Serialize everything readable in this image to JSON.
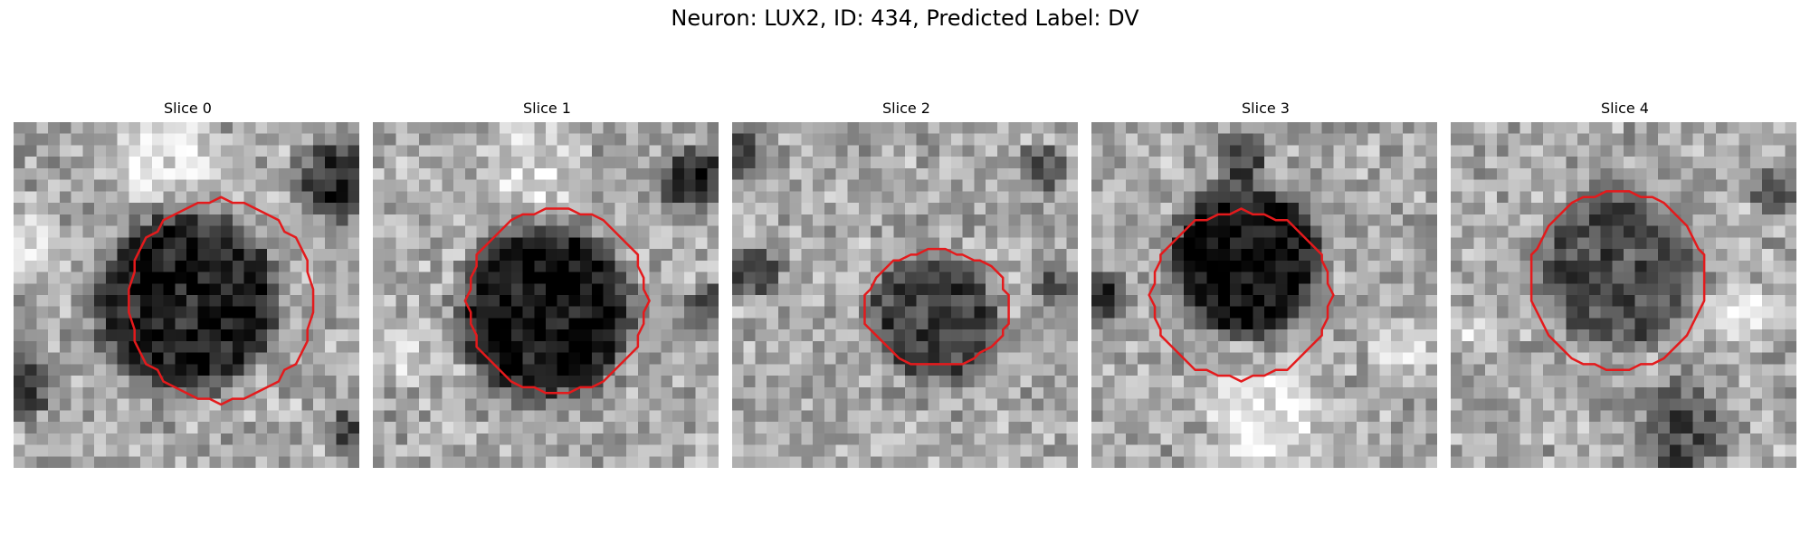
{
  "figure": {
    "title": "Neuron: LUX2, ID: 434, Predicted Label: DV"
  },
  "contour_color": "#e41a1c",
  "grid_size": 30,
  "panels": [
    {
      "title": "Slice 0",
      "blob": {
        "cx": 15.0,
        "cy": 15.5,
        "r": 8.5,
        "darkness": 0.55
      },
      "contour": {
        "cx": 18.0,
        "cy": 15.5,
        "rx": 8.0,
        "ry": 8.8
      },
      "dark_regions": [
        {
          "cx": 28,
          "cy": 5,
          "r": 5,
          "darkness": 0.5
        },
        {
          "cx": 0.5,
          "cy": 23,
          "r": 4,
          "darkness": 0.45
        },
        {
          "cx": 29,
          "cy": 27,
          "r": 3,
          "darkness": 0.35
        }
      ],
      "bright_regions": [
        {
          "cx": 13,
          "cy": 3,
          "r": 6,
          "brightness": 0.25
        },
        {
          "cx": 2,
          "cy": 11,
          "r": 4,
          "brightness": 0.2
        }
      ],
      "seed": 11
    },
    {
      "title": "Slice 1",
      "blob": {
        "cx": 15.0,
        "cy": 16.5,
        "r": 8.0,
        "darkness": 0.6
      },
      "contour": {
        "cx": 16.0,
        "cy": 15.5,
        "rx": 7.8,
        "ry": 8.0
      },
      "dark_regions": [
        {
          "cx": 28,
          "cy": 5,
          "r": 4,
          "darkness": 0.5
        },
        {
          "cx": 29,
          "cy": 16,
          "r": 3,
          "darkness": 0.3
        }
      ],
      "bright_regions": [
        {
          "cx": 14,
          "cy": 4,
          "r": 6,
          "brightness": 0.2
        },
        {
          "cx": 3,
          "cy": 20,
          "r": 4,
          "brightness": 0.15
        }
      ],
      "seed": 23
    },
    {
      "title": "Slice 2",
      "blob": {
        "cx": 17.5,
        "cy": 17.0,
        "r": 6.0,
        "darkness": 0.4
      },
      "contour": {
        "cx": 17.8,
        "cy": 16.2,
        "rx": 6.3,
        "ry": 5.0
      },
      "dark_regions": [
        {
          "cx": 0.5,
          "cy": 3,
          "r": 3,
          "darkness": 0.4
        },
        {
          "cx": 2,
          "cy": 13,
          "r": 3,
          "darkness": 0.4
        },
        {
          "cx": 27,
          "cy": 4,
          "r": 3,
          "darkness": 0.35
        },
        {
          "cx": 28,
          "cy": 14,
          "r": 3,
          "darkness": 0.3
        }
      ],
      "bright_regions": [],
      "seed": 37
    },
    {
      "title": "Slice 3",
      "blob": {
        "cx": 13.5,
        "cy": 12.0,
        "r": 7.0,
        "darkness": 0.6
      },
      "contour": {
        "cx": 13.0,
        "cy": 15.0,
        "rx": 7.8,
        "ry": 7.3
      },
      "dark_regions": [
        {
          "cx": 13,
          "cy": 3,
          "r": 3,
          "darkness": 0.45
        },
        {
          "cx": 1,
          "cy": 15,
          "r": 3,
          "darkness": 0.5
        }
      ],
      "bright_regions": [
        {
          "cx": 15,
          "cy": 26,
          "r": 7,
          "brightness": 0.25
        },
        {
          "cx": 27,
          "cy": 20,
          "r": 4,
          "brightness": 0.2
        }
      ],
      "seed": 53
    },
    {
      "title": "Slice 4",
      "blob": {
        "cx": 14.5,
        "cy": 12.5,
        "r": 7.5,
        "darkness": 0.35
      },
      "contour": {
        "cx": 14.5,
        "cy": 13.7,
        "rx": 7.7,
        "ry": 7.7
      },
      "dark_regions": [
        {
          "cx": 20,
          "cy": 27,
          "r": 6,
          "darkness": 0.35
        },
        {
          "cx": 28,
          "cy": 6,
          "r": 3,
          "darkness": 0.3
        }
      ],
      "bright_regions": [
        {
          "cx": 26,
          "cy": 17,
          "r": 4,
          "brightness": 0.2
        },
        {
          "cx": 2,
          "cy": 18,
          "r": 3,
          "brightness": 0.15
        }
      ],
      "seed": 71
    }
  ]
}
